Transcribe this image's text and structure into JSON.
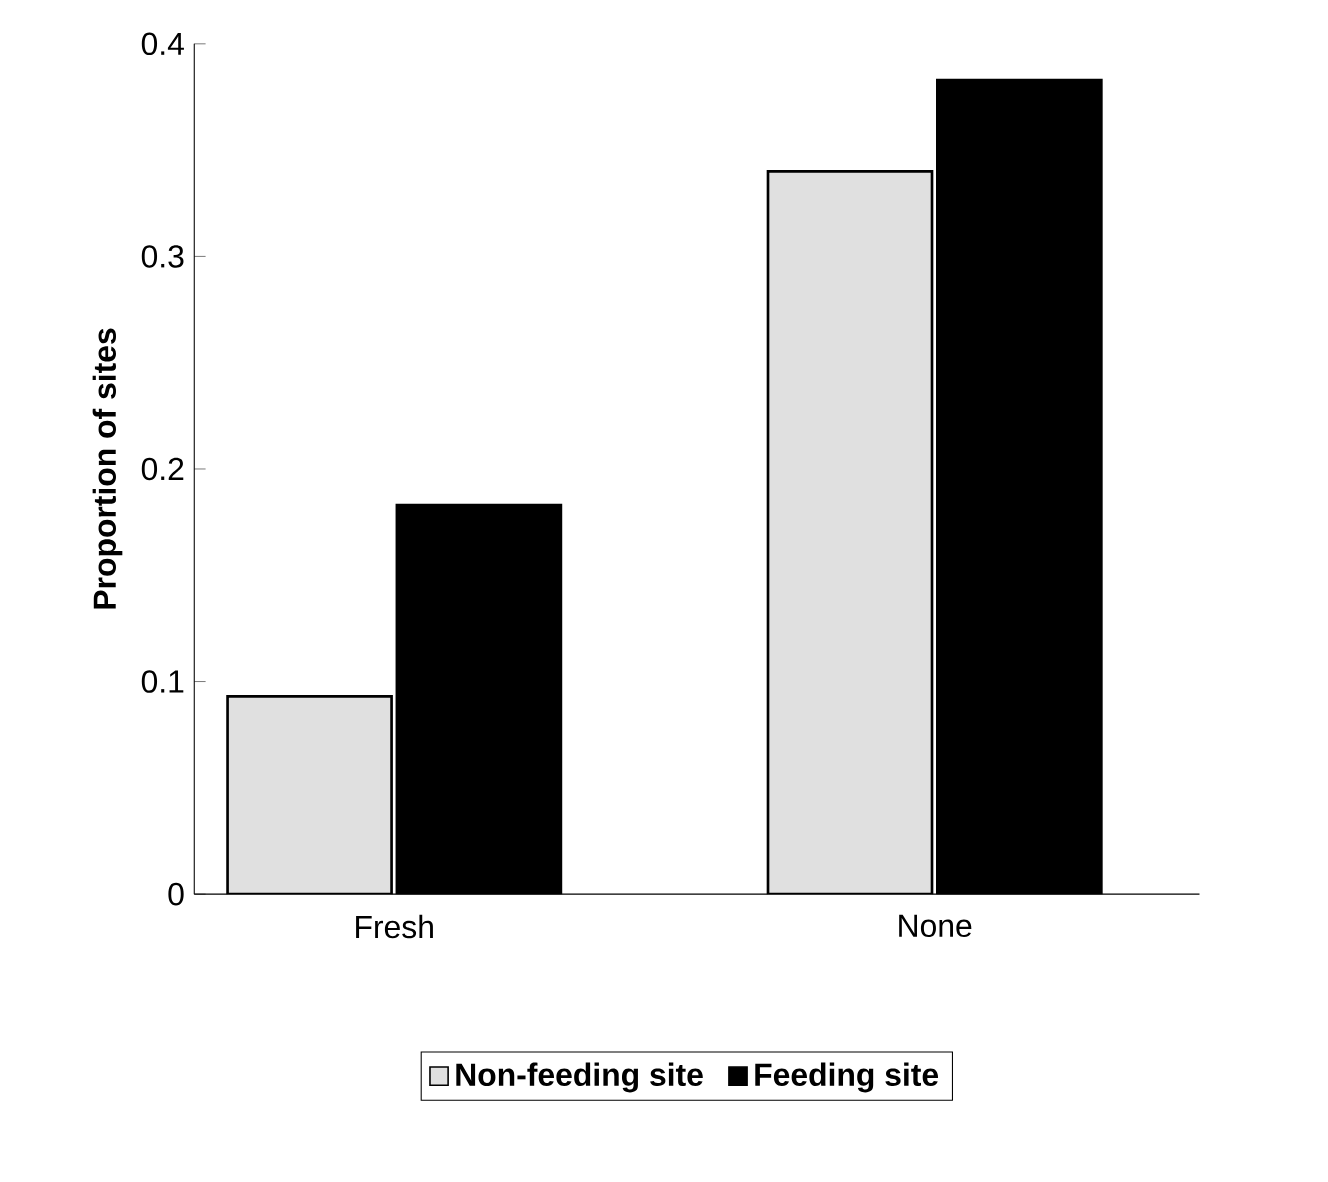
{
  "chart_data": {
    "type": "bar",
    "ylabel": "Proportion of sites",
    "categories": [
      "Fresh",
      "None"
    ],
    "series": [
      {
        "name": "Non-feeding site",
        "color": "#e0e0e0",
        "values": [
          0.093,
          0.34
        ]
      },
      {
        "name": "Feeding site",
        "color": "#000000",
        "values": [
          0.183,
          0.383
        ]
      }
    ],
    "ylim": [
      0,
      0.4
    ],
    "yticks": [
      0,
      0.1,
      0.2,
      0.3,
      0.4
    ],
    "grid": false,
    "legend": "bottom"
  }
}
